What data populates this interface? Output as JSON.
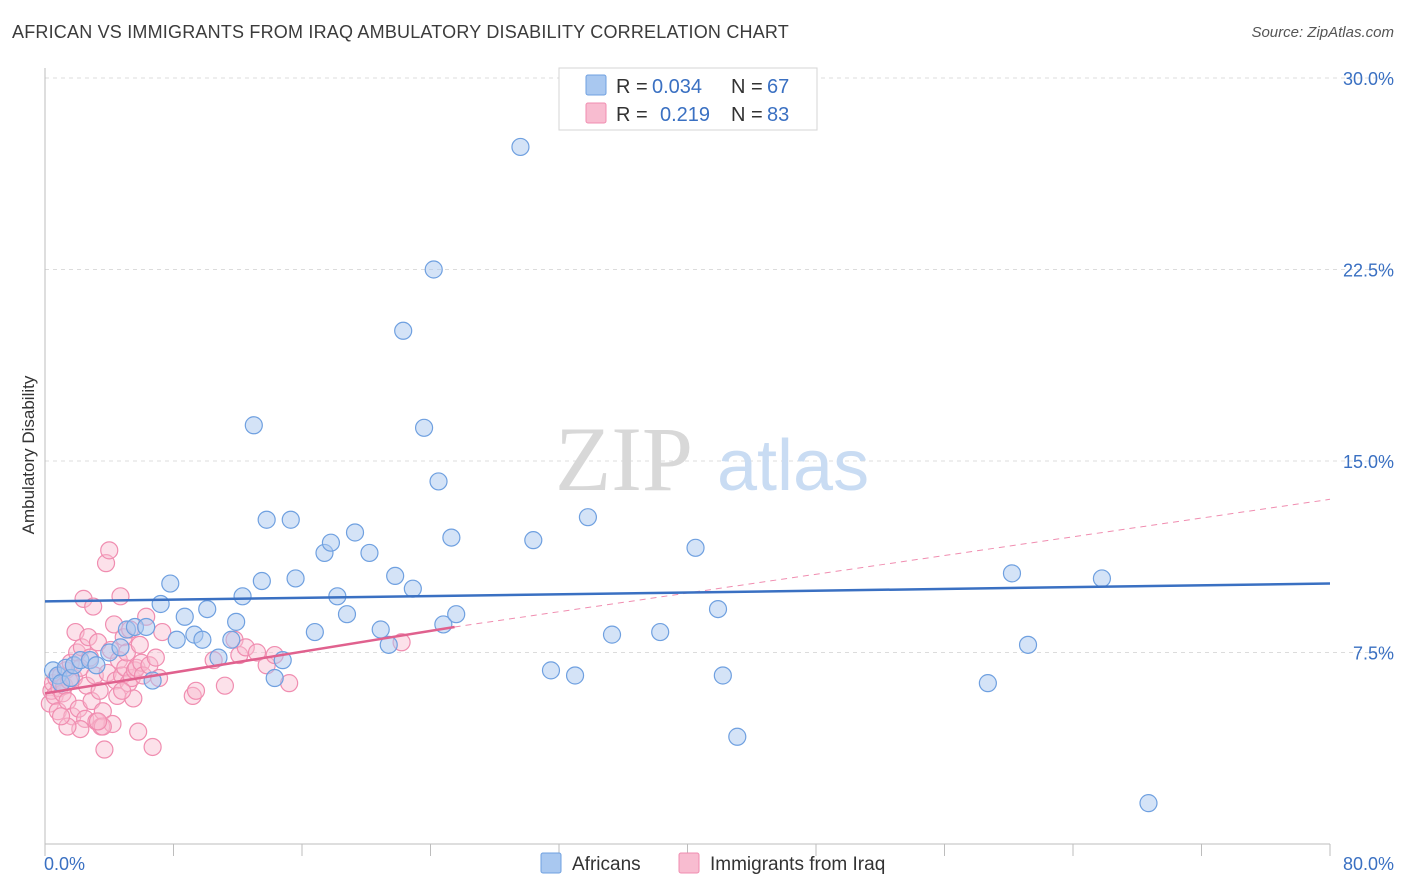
{
  "title": "AFRICAN VS IMMIGRANTS FROM IRAQ AMBULATORY DISABILITY CORRELATION CHART",
  "source": "Source: ZipAtlas.com",
  "watermark": {
    "zip": "ZIP",
    "atlas": "atlas"
  },
  "colors": {
    "blue": "#3a70c2",
    "blue_fill": "#a9c8f0",
    "blue_stroke": "#6fa0e0",
    "pink": "#e0618e",
    "pink_fill": "#f8bcd0",
    "pink_stroke": "#f08db0",
    "grid": "#dcdcdc"
  },
  "legend": {
    "r_label": "R =",
    "n_label": "N =",
    "series": [
      {
        "name": "Africans",
        "r": "0.034",
        "n": "67"
      },
      {
        "name": "Immigrants from Iraq",
        "r": "0.219",
        "n": "83"
      }
    ]
  },
  "chart_data": {
    "type": "scatter",
    "title": "AFRICAN VS IMMIGRANTS FROM IRAQ AMBULATORY DISABILITY CORRELATION CHART",
    "xlabel": "",
    "ylabel": "Ambulatory Disability",
    "xlim": [
      0,
      80
    ],
    "ylim": [
      0,
      31.5
    ],
    "x_tick_labels": [
      "0.0%",
      "80.0%"
    ],
    "y_ticks": [
      7.5,
      15.0,
      22.5,
      30.0
    ],
    "y_tick_labels": [
      "7.5%",
      "15.0%",
      "22.5%",
      "30.0%"
    ],
    "legend_position": "top-center",
    "series": [
      {
        "name": "Africans",
        "r": 0.034,
        "n": 67,
        "trend": {
          "x": [
            0,
            80
          ],
          "y": [
            9.5,
            10.2
          ]
        },
        "points": [
          [
            0.5,
            6.8
          ],
          [
            0.8,
            6.6
          ],
          [
            1.0,
            6.3
          ],
          [
            1.3,
            6.9
          ],
          [
            1.6,
            6.5
          ],
          [
            1.8,
            7.0
          ],
          [
            2.2,
            7.2
          ],
          [
            2.8,
            7.2
          ],
          [
            3.2,
            7.0
          ],
          [
            4.0,
            7.5
          ],
          [
            4.7,
            7.7
          ],
          [
            5.1,
            8.4
          ],
          [
            5.6,
            8.5
          ],
          [
            6.3,
            8.5
          ],
          [
            6.7,
            6.4
          ],
          [
            7.2,
            9.4
          ],
          [
            7.8,
            10.2
          ],
          [
            8.2,
            8.0
          ],
          [
            8.7,
            8.9
          ],
          [
            9.3,
            8.2
          ],
          [
            9.8,
            8.0
          ],
          [
            10.1,
            9.2
          ],
          [
            10.8,
            7.3
          ],
          [
            11.6,
            8.0
          ],
          [
            11.9,
            8.7
          ],
          [
            12.3,
            9.7
          ],
          [
            13.0,
            16.4
          ],
          [
            13.5,
            10.3
          ],
          [
            13.8,
            12.7
          ],
          [
            14.3,
            6.5
          ],
          [
            14.8,
            7.2
          ],
          [
            15.3,
            12.7
          ],
          [
            15.6,
            10.4
          ],
          [
            16.8,
            8.3
          ],
          [
            17.4,
            11.4
          ],
          [
            17.8,
            11.8
          ],
          [
            18.2,
            9.7
          ],
          [
            18.8,
            9.0
          ],
          [
            19.3,
            12.2
          ],
          [
            20.2,
            11.4
          ],
          [
            20.9,
            8.4
          ],
          [
            21.4,
            7.8
          ],
          [
            21.8,
            10.5
          ],
          [
            22.3,
            20.1
          ],
          [
            22.9,
            10.0
          ],
          [
            23.6,
            16.3
          ],
          [
            24.2,
            22.5
          ],
          [
            24.5,
            14.2
          ],
          [
            24.8,
            8.6
          ],
          [
            25.3,
            12.0
          ],
          [
            25.6,
            9.0
          ],
          [
            29.6,
            27.3
          ],
          [
            30.4,
            11.9
          ],
          [
            31.5,
            6.8
          ],
          [
            33.0,
            6.6
          ],
          [
            33.8,
            12.8
          ],
          [
            35.3,
            8.2
          ],
          [
            38.3,
            8.3
          ],
          [
            40.5,
            11.6
          ],
          [
            41.9,
            9.2
          ],
          [
            42.2,
            6.6
          ],
          [
            43.1,
            4.2
          ],
          [
            58.7,
            6.3
          ],
          [
            60.2,
            10.6
          ],
          [
            61.2,
            7.8
          ],
          [
            68.7,
            1.6
          ],
          [
            65.8,
            10.4
          ]
        ]
      },
      {
        "name": "Immigrants from Iraq",
        "r": 0.219,
        "n": 83,
        "trend": {
          "x": [
            0,
            25.5
          ],
          "y": [
            5.9,
            8.5
          ]
        },
        "trend_extended": {
          "x": [
            25.5,
            80
          ],
          "y": [
            8.5,
            13.5
          ]
        },
        "points": [
          [
            0.3,
            5.5
          ],
          [
            0.4,
            6.0
          ],
          [
            0.5,
            6.3
          ],
          [
            0.6,
            5.8
          ],
          [
            0.7,
            6.5
          ],
          [
            0.8,
            5.2
          ],
          [
            0.9,
            6.1
          ],
          [
            1.0,
            6.6
          ],
          [
            1.1,
            5.9
          ],
          [
            1.2,
            6.2
          ],
          [
            1.3,
            6.8
          ],
          [
            1.4,
            5.6
          ],
          [
            1.5,
            6.4
          ],
          [
            1.6,
            7.1
          ],
          [
            1.7,
            5.0
          ],
          [
            1.8,
            6.5
          ],
          [
            1.9,
            8.3
          ],
          [
            2.0,
            7.5
          ],
          [
            2.1,
            5.3
          ],
          [
            2.2,
            6.9
          ],
          [
            2.3,
            7.7
          ],
          [
            2.4,
            9.6
          ],
          [
            2.5,
            4.9
          ],
          [
            2.6,
            6.2
          ],
          [
            2.7,
            8.1
          ],
          [
            2.8,
            7.3
          ],
          [
            2.9,
            5.6
          ],
          [
            3.0,
            9.3
          ],
          [
            3.1,
            6.6
          ],
          [
            3.2,
            4.8
          ],
          [
            3.3,
            7.9
          ],
          [
            3.4,
            6.0
          ],
          [
            3.5,
            4.6
          ],
          [
            3.6,
            5.2
          ],
          [
            3.7,
            3.7
          ],
          [
            3.8,
            11.0
          ],
          [
            3.9,
            6.7
          ],
          [
            4.0,
            11.5
          ],
          [
            4.1,
            7.6
          ],
          [
            4.2,
            4.7
          ],
          [
            4.3,
            8.6
          ],
          [
            4.4,
            6.4
          ],
          [
            4.5,
            5.8
          ],
          [
            4.6,
            7.2
          ],
          [
            4.7,
            9.7
          ],
          [
            4.8,
            6.6
          ],
          [
            4.9,
            8.1
          ],
          [
            5.0,
            6.9
          ],
          [
            5.1,
            7.5
          ],
          [
            5.2,
            6.3
          ],
          [
            5.3,
            8.4
          ],
          [
            5.4,
            6.5
          ],
          [
            5.5,
            5.7
          ],
          [
            5.6,
            6.8
          ],
          [
            5.7,
            6.9
          ],
          [
            5.8,
            4.4
          ],
          [
            5.9,
            7.8
          ],
          [
            6.0,
            7.1
          ],
          [
            6.1,
            6.6
          ],
          [
            6.3,
            8.9
          ],
          [
            6.5,
            7.0
          ],
          [
            6.7,
            3.8
          ],
          [
            6.9,
            7.3
          ],
          [
            7.1,
            6.5
          ],
          [
            7.3,
            8.3
          ],
          [
            9.2,
            5.8
          ],
          [
            9.4,
            6.0
          ],
          [
            10.5,
            7.2
          ],
          [
            11.2,
            6.2
          ],
          [
            11.8,
            8.0
          ],
          [
            12.1,
            7.4
          ],
          [
            12.5,
            7.7
          ],
          [
            13.2,
            7.5
          ],
          [
            13.8,
            7.0
          ],
          [
            14.3,
            7.4
          ],
          [
            15.2,
            6.3
          ],
          [
            3.6,
            4.6
          ],
          [
            3.3,
            4.8
          ],
          [
            4.8,
            6.0
          ],
          [
            2.2,
            4.5
          ],
          [
            1.4,
            4.6
          ],
          [
            1.0,
            5.0
          ],
          [
            22.2,
            7.9
          ]
        ]
      }
    ]
  }
}
